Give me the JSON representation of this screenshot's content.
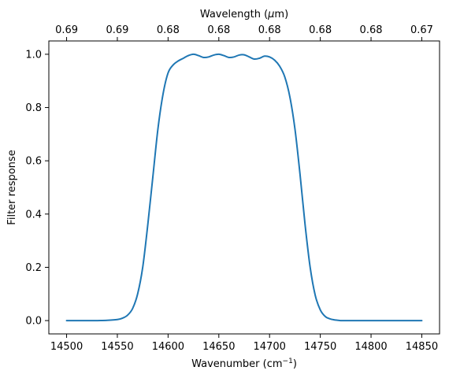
{
  "chart_data": {
    "type": "line",
    "xlabel": "Wavenumber (cm",
    "xlabel_sup": "−1",
    "xlabel_suffix": ")",
    "ylabel": "Filter response",
    "top_xlabel_prefix": "Wavelength (",
    "top_xlabel_mu": "μ",
    "top_xlabel_suffix": "m)",
    "xlim": [
      14482.5,
      14867.5
    ],
    "ylim": [
      -0.05,
      1.05
    ],
    "x_ticks": [
      14500,
      14550,
      14600,
      14650,
      14700,
      14750,
      14800,
      14850
    ],
    "x_tick_labels": [
      "14500",
      "14550",
      "14600",
      "14650",
      "14700",
      "14750",
      "14800",
      "14850"
    ],
    "y_ticks": [
      0.0,
      0.2,
      0.4,
      0.6,
      0.8,
      1.0
    ],
    "y_tick_labels": [
      "0.0",
      "0.2",
      "0.4",
      "0.6",
      "0.8",
      "1.0"
    ],
    "top_ticks": [
      14500,
      14550,
      14600,
      14650,
      14700,
      14750,
      14800,
      14850
    ],
    "top_tick_labels": [
      "0.69",
      "0.69",
      "0.68",
      "0.68",
      "0.68",
      "0.68",
      "0.68",
      "0.67"
    ],
    "grid": false,
    "series": [
      {
        "color": "#1f77b4",
        "x": [
          14500,
          14510,
          14520,
          14530,
          14540,
          14550,
          14555,
          14560,
          14565,
          14570,
          14575,
          14580,
          14585,
          14590,
          14595,
          14600,
          14605,
          14610,
          14615,
          14620,
          14625,
          14630,
          14635,
          14640,
          14645,
          14650,
          14655,
          14660,
          14665,
          14670,
          14675,
          14680,
          14685,
          14690,
          14695,
          14700,
          14705,
          14710,
          14715,
          14720,
          14725,
          14730,
          14735,
          14740,
          14745,
          14750,
          14755,
          14760,
          14765,
          14770,
          14775,
          14780,
          14785,
          14790,
          14800,
          14810,
          14820,
          14830,
          14840,
          14850
        ],
        "y": [
          0.0,
          0.0,
          0.0,
          0.0,
          0.001,
          0.004,
          0.009,
          0.02,
          0.045,
          0.1,
          0.2,
          0.36,
          0.54,
          0.72,
          0.85,
          0.93,
          0.96,
          0.975,
          0.985,
          0.995,
          1.0,
          0.995,
          0.988,
          0.99,
          0.997,
          1.0,
          0.995,
          0.988,
          0.99,
          0.997,
          0.998,
          0.99,
          0.982,
          0.985,
          0.993,
          0.99,
          0.978,
          0.955,
          0.915,
          0.84,
          0.72,
          0.55,
          0.36,
          0.2,
          0.095,
          0.04,
          0.015,
          0.006,
          0.002,
          0.0,
          0.0,
          0.0,
          0.0,
          0.0,
          0.0,
          0.0,
          0.0,
          0.0,
          0.0,
          0.0
        ]
      }
    ]
  }
}
